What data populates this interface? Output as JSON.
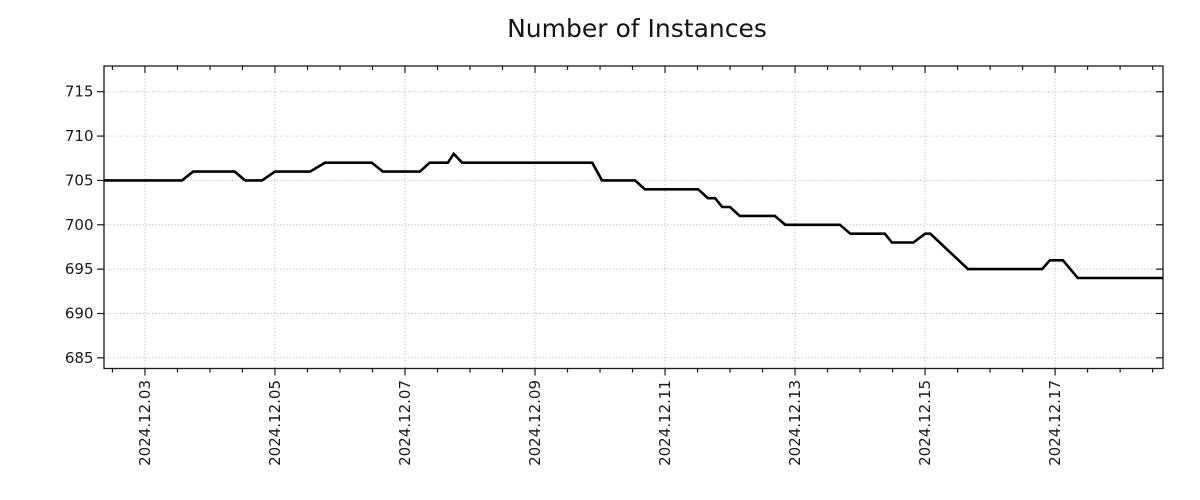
{
  "chart_data": {
    "type": "line",
    "title": "Number of Instances",
    "series_name": "number-of-instances",
    "line_shape": "step-like",
    "x_unit": "days since 2024.12.03 00:00",
    "xlim": [
      -0.63,
      15.66
    ],
    "ylim": [
      683.8,
      717.9
    ],
    "grid": true,
    "legend": "none",
    "x_axis": {
      "major_tick_positions": [
        0,
        2,
        4,
        6,
        8,
        10,
        12,
        14
      ],
      "major_tick_labels": [
        "2024.12.03",
        "2024.12.05",
        "2024.12.07",
        "2024.12.09",
        "2024.12.11",
        "2024.12.13",
        "2024.12.15",
        "2024.12.17"
      ],
      "minor_tick_step": 0.5,
      "label_rotation_deg": 90
    },
    "y_axis": {
      "major_tick_values": [
        685,
        690,
        695,
        700,
        705,
        710,
        715
      ]
    },
    "points": [
      [
        -0.63,
        705
      ],
      [
        0.57,
        705
      ],
      [
        0.74,
        706
      ],
      [
        1.38,
        706
      ],
      [
        1.54,
        705
      ],
      [
        1.8,
        705
      ],
      [
        2.0,
        706
      ],
      [
        2.54,
        706
      ],
      [
        2.77,
        707
      ],
      [
        3.49,
        707
      ],
      [
        3.66,
        706
      ],
      [
        4.23,
        706
      ],
      [
        4.38,
        707
      ],
      [
        4.66,
        707
      ],
      [
        4.75,
        708
      ],
      [
        4.88,
        707
      ],
      [
        6.88,
        707
      ],
      [
        7.03,
        705
      ],
      [
        7.54,
        705
      ],
      [
        7.69,
        704
      ],
      [
        8.51,
        704
      ],
      [
        8.66,
        703
      ],
      [
        8.77,
        703
      ],
      [
        8.88,
        702
      ],
      [
        9.0,
        702
      ],
      [
        9.15,
        701
      ],
      [
        9.69,
        701
      ],
      [
        9.85,
        700
      ],
      [
        10.69,
        700
      ],
      [
        10.85,
        699
      ],
      [
        11.38,
        699
      ],
      [
        11.49,
        698
      ],
      [
        11.82,
        698
      ],
      [
        12.0,
        699
      ],
      [
        12.08,
        699
      ],
      [
        12.66,
        695
      ],
      [
        13.8,
        695
      ],
      [
        13.92,
        696
      ],
      [
        14.12,
        696
      ],
      [
        14.35,
        694
      ],
      [
        15.66,
        694
      ]
    ],
    "colors": {
      "line": "#000000",
      "grid": "#b3b3b3",
      "frame": "#1a1a1a",
      "text": "#1a1a1a",
      "background": "#ffffff"
    }
  }
}
